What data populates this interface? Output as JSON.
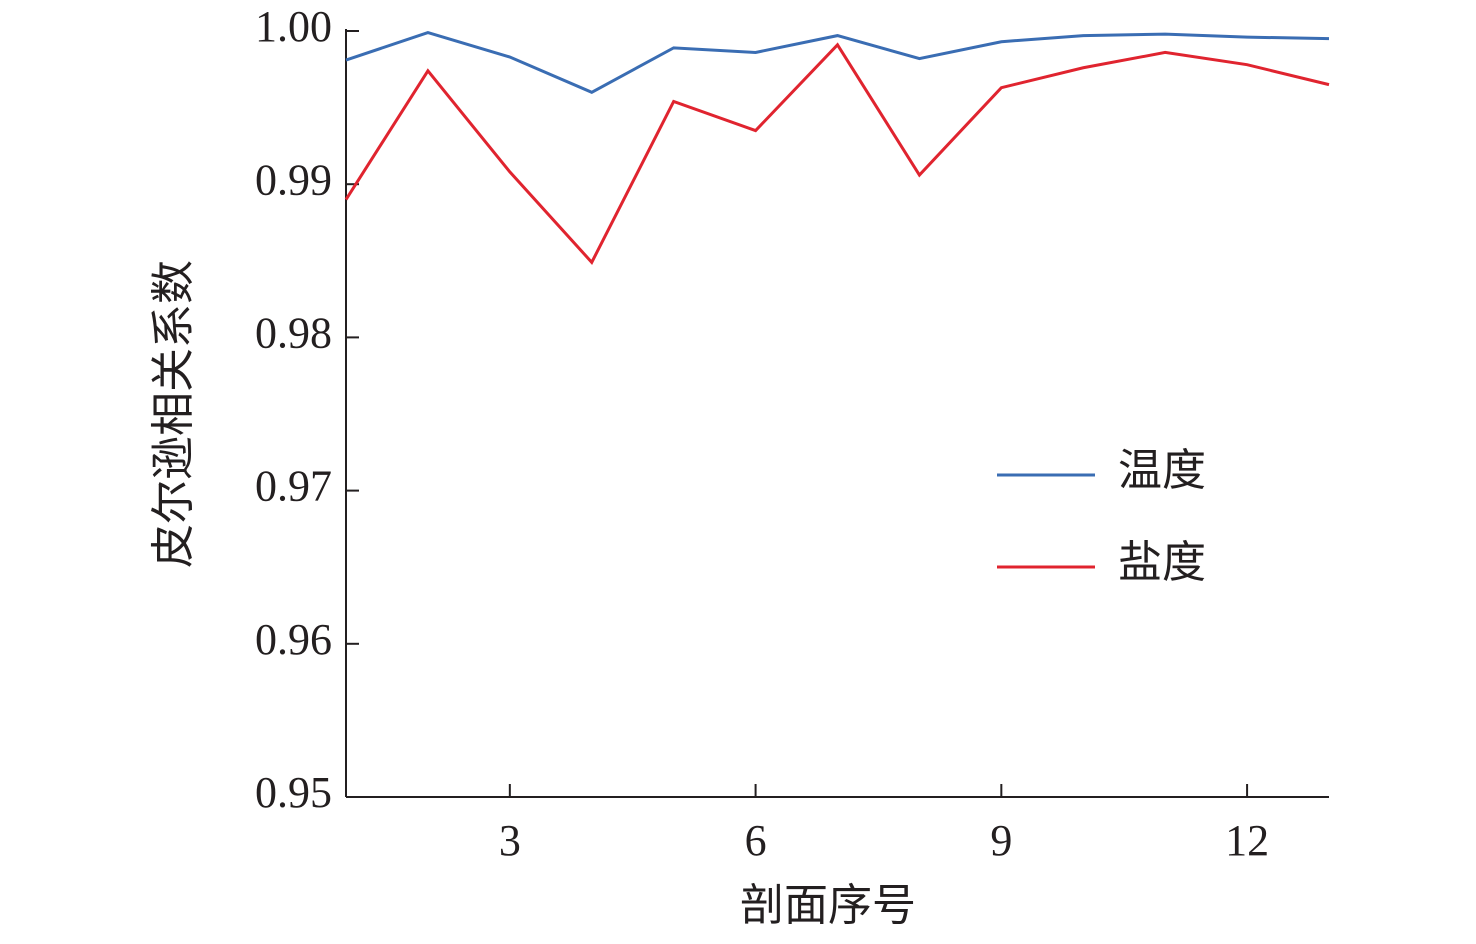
{
  "chart_data": {
    "type": "line",
    "x_label": "剖面序号",
    "y_label": "皮尔逊相关系数",
    "x": [
      1,
      2,
      3,
      4,
      5,
      6,
      7,
      8,
      9,
      10,
      11,
      12,
      13
    ],
    "series": [
      {
        "name": "温度",
        "color": "#3a6db3",
        "values": [
          0.9981,
          0.9999,
          0.9983,
          0.996,
          0.9989,
          0.9986,
          0.9997,
          0.9982,
          0.9993,
          0.9997,
          0.9998,
          0.9996,
          0.9995
        ]
      },
      {
        "name": "盐度",
        "color": "#e0242f",
        "values": [
          0.989,
          0.9974,
          0.9908,
          0.9849,
          0.9954,
          0.9935,
          0.9991,
          0.9906,
          0.9963,
          0.9976,
          0.9986,
          0.9978,
          0.9965
        ]
      }
    ],
    "xlim": [
      1,
      13
    ],
    "xticks": [
      3,
      6,
      9,
      12
    ],
    "ylim": [
      0.95,
      1
    ],
    "yticks": [
      0.95,
      0.96,
      0.97,
      0.98,
      0.99,
      {
        "value": 1,
        "label": "1.00"
      }
    ],
    "legend": "right"
  }
}
